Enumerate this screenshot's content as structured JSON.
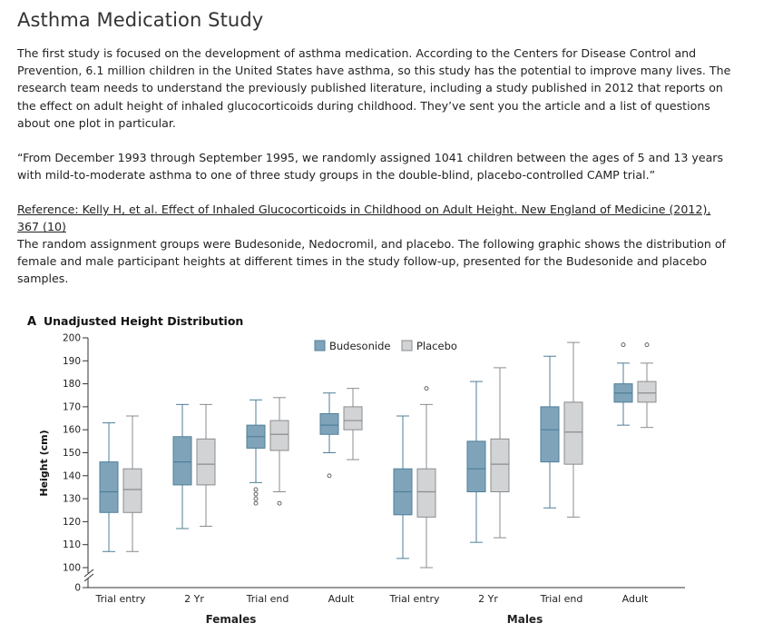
{
  "page": {
    "title": "Asthma Medication Study",
    "paragraph1": "The first study is focused on the development of asthma medication. According to the Centers for Disease Control and Prevention, 6.1 million children in the United States have asthma, so this study has the potential to improve many lives. The research team needs to understand the previously published literature, including a study published in 2012 that reports on the effect on adult height of inhaled glucocorticoids during childhood. They’ve sent you the article and a list of questions about one plot in particular.",
    "quote": "“From December 1993 through September 1995, we randomly assigned 1041 children between the ages of 5 and 13 years with mild-to-moderate asthma to one of three study groups in the double-blind, placebo-controlled CAMP trial.”",
    "reference": "Reference: Kelly H, et al. Effect of Inhaled Glucocorticoids in Childhood on Adult Height. New England of Medicine (2012), 367 (10)",
    "paragraph4": "The random assignment groups were Budesonide, Nedocromil, and placebo. The following graphic shows the distribution of female and male participant heights at different times in the study follow-up, presented for the Budesonide and placebo samples."
  },
  "chart_data": {
    "type": "box",
    "panel_letter": "A",
    "title": "Unadjusted Height Distribution",
    "ylabel": "Height (cm)",
    "ylim": [
      100,
      200
    ],
    "y_break": true,
    "y_ticks": [
      0,
      100,
      110,
      120,
      130,
      140,
      150,
      160,
      170,
      180,
      190,
      200
    ],
    "categories": [
      "Trial entry",
      "2 Yr",
      "Trial end",
      "Adult",
      "Trial entry",
      "2 Yr",
      "Trial end",
      "Adult"
    ],
    "groups": [
      {
        "label": "Females",
        "categories": [
          0,
          1,
          2,
          3
        ]
      },
      {
        "label": "Males",
        "categories": [
          4,
          5,
          6,
          7
        ]
      }
    ],
    "legend_position": "top",
    "series": [
      {
        "name": "Budesonide",
        "color": "#7fa4ba",
        "boxes": [
          {
            "whisker_low": 107,
            "q1": 124,
            "median": 133,
            "q3": 146,
            "whisker_high": 163,
            "outliers": []
          },
          {
            "whisker_low": 117,
            "q1": 136,
            "median": 146,
            "q3": 157,
            "whisker_high": 171,
            "outliers": []
          },
          {
            "whisker_low": 137,
            "q1": 152,
            "median": 157,
            "q3": 162,
            "whisker_high": 173,
            "outliers": [
              128,
              130,
              132,
              134
            ]
          },
          {
            "whisker_low": 150,
            "q1": 158,
            "median": 162,
            "q3": 167,
            "whisker_high": 176,
            "outliers": [
              140
            ]
          },
          {
            "whisker_low": 104,
            "q1": 123,
            "median": 133,
            "q3": 143,
            "whisker_high": 166,
            "outliers": []
          },
          {
            "whisker_low": 111,
            "q1": 133,
            "median": 143,
            "q3": 155,
            "whisker_high": 181,
            "outliers": []
          },
          {
            "whisker_low": 126,
            "q1": 146,
            "median": 160,
            "q3": 170,
            "whisker_high": 192,
            "outliers": []
          },
          {
            "whisker_low": 162,
            "q1": 172,
            "median": 176,
            "q3": 180,
            "whisker_high": 189,
            "outliers": [
              197
            ]
          }
        ]
      },
      {
        "name": "Placebo",
        "color": "#d2d3d5",
        "boxes": [
          {
            "whisker_low": 107,
            "q1": 124,
            "median": 134,
            "q3": 143,
            "whisker_high": 166,
            "outliers": []
          },
          {
            "whisker_low": 118,
            "q1": 136,
            "median": 145,
            "q3": 156,
            "whisker_high": 171,
            "outliers": []
          },
          {
            "whisker_low": 133,
            "q1": 151,
            "median": 158,
            "q3": 164,
            "whisker_high": 174,
            "outliers": [
              128
            ]
          },
          {
            "whisker_low": 147,
            "q1": 160,
            "median": 164,
            "q3": 170,
            "whisker_high": 178,
            "outliers": []
          },
          {
            "whisker_low": 100,
            "q1": 122,
            "median": 133,
            "q3": 143,
            "whisker_high": 171,
            "outliers": [
              178
            ]
          },
          {
            "whisker_low": 113,
            "q1": 133,
            "median": 145,
            "q3": 156,
            "whisker_high": 187,
            "outliers": []
          },
          {
            "whisker_low": 122,
            "q1": 145,
            "median": 159,
            "q3": 172,
            "whisker_high": 198,
            "outliers": []
          },
          {
            "whisker_low": 161,
            "q1": 172,
            "median": 176,
            "q3": 181,
            "whisker_high": 189,
            "outliers": [
              197
            ]
          }
        ]
      }
    ]
  }
}
